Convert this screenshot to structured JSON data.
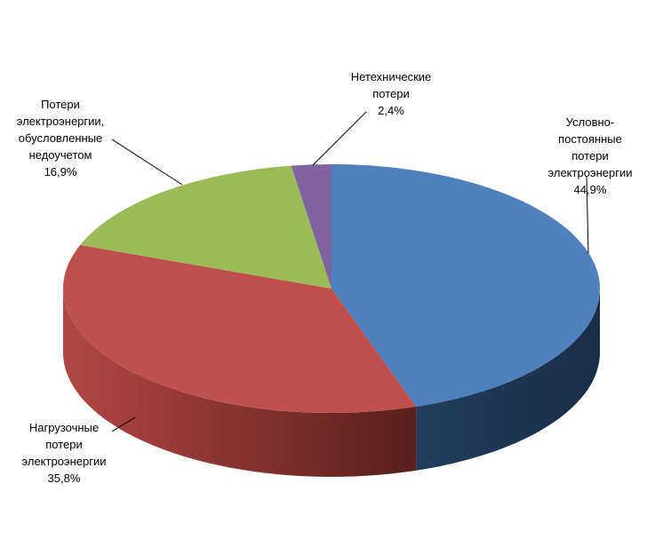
{
  "chart_data": {
    "type": "pie3d",
    "categories": [
      "Условно-\nпостоянные потери\nэлектроэнергии",
      "Нагрузочные\nпотери\nэлектроэнергии",
      "Потери\nэлектроэнергии,\nобусловленные\nнедоучетом",
      "Нетехнические\nпотери"
    ],
    "values": [
      44.9,
      35.8,
      16.9,
      2.4
    ],
    "value_labels": [
      "44,9%",
      "35,8%",
      "16,9%",
      "2,4%"
    ],
    "colors": [
      "#4f81bd",
      "#c0504d",
      "#9bbb59",
      "#8064a2"
    ]
  }
}
